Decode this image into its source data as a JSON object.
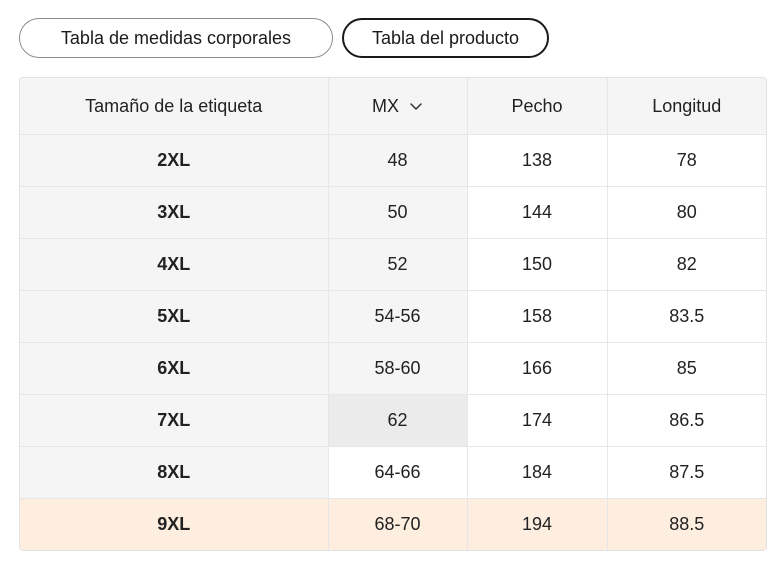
{
  "tabs": [
    {
      "label": "Tabla de medidas corporales"
    },
    {
      "label": "Tabla del producto"
    }
  ],
  "table": {
    "headers": {
      "label": "Tamaño de la etiqueta",
      "mx": "MX",
      "chest": "Pecho",
      "length": "Longitud"
    },
    "rows": [
      {
        "label": "2XL",
        "mx": "48",
        "chest": "138",
        "length": "78"
      },
      {
        "label": "3XL",
        "mx": "50",
        "chest": "144",
        "length": "80"
      },
      {
        "label": "4XL",
        "mx": "52",
        "chest": "150",
        "length": "82"
      },
      {
        "label": "5XL",
        "mx": "54-56",
        "chest": "158",
        "length": "83.5"
      },
      {
        "label": "6XL",
        "mx": "58-60",
        "chest": "166",
        "length": "85"
      },
      {
        "label": "7XL",
        "mx": "62",
        "chest": "174",
        "length": "86.5"
      },
      {
        "label": "8XL",
        "mx": "64-66",
        "chest": "184",
        "length": "87.5"
      },
      {
        "label": "9XL",
        "mx": "68-70",
        "chest": "194",
        "length": "88.5"
      }
    ]
  },
  "icons": {
    "mx_dropdown": "chevron-down-icon"
  },
  "colors": {
    "highlight_row": "#fdeee0",
    "header_bg": "#f5f5f5"
  }
}
